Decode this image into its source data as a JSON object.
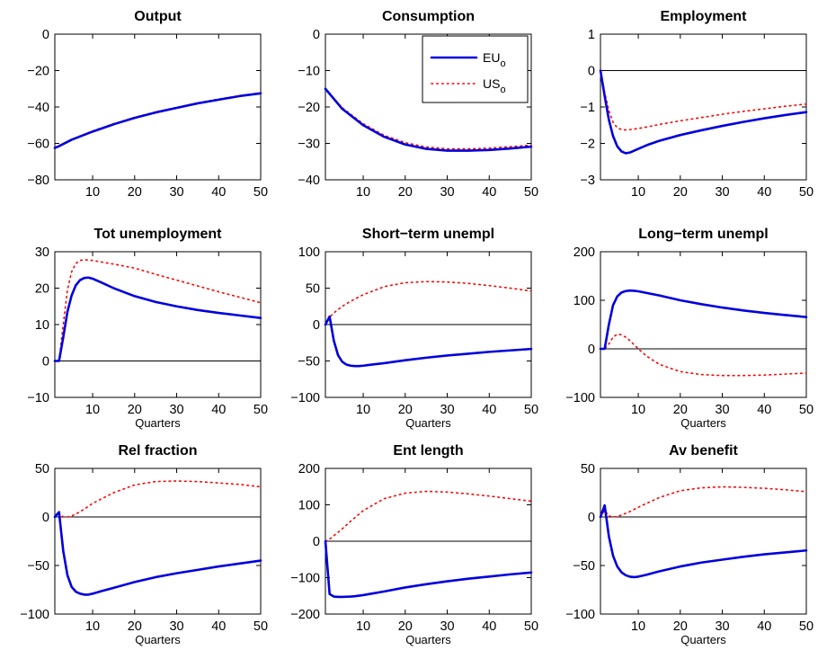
{
  "chart_data": [
    {
      "type": "line",
      "title": "Output",
      "xlabel": "",
      "xlim": [
        1,
        50
      ],
      "ylim": [
        -80,
        0
      ],
      "xticks": [
        10,
        20,
        30,
        40,
        50
      ],
      "yticks": [
        -80,
        -60,
        -40,
        -20,
        0
      ],
      "zero_line": false,
      "series": [
        {
          "name": "EU_o",
          "x": [
            1,
            2,
            5,
            10,
            15,
            20,
            25,
            30,
            35,
            40,
            45,
            50
          ],
          "y": [
            -62.5,
            -61.5,
            -58,
            -53.5,
            -49.5,
            -46,
            -43,
            -40.5,
            -38,
            -36,
            -34,
            -32.5
          ]
        },
        {
          "name": "US_o",
          "x": [
            1,
            2,
            5,
            10,
            15,
            20,
            25,
            30,
            35,
            40,
            45,
            50
          ],
          "y": [
            -62.2,
            -61.2,
            -57.8,
            -53.2,
            -49.2,
            -45.7,
            -42.7,
            -40.2,
            -37.8,
            -35.7,
            -33.8,
            -32.3
          ]
        }
      ]
    },
    {
      "type": "line",
      "title": "Consumption",
      "xlabel": "",
      "xlim": [
        1,
        50
      ],
      "ylim": [
        -40,
        0
      ],
      "xticks": [
        10,
        20,
        30,
        40,
        50
      ],
      "yticks": [
        -40,
        -30,
        -20,
        -10,
        0
      ],
      "zero_line": false,
      "series": [
        {
          "name": "EU_o",
          "x": [
            1,
            5,
            10,
            15,
            20,
            25,
            30,
            35,
            40,
            45,
            50
          ],
          "y": [
            -15,
            -20.5,
            -25,
            -28.2,
            -30.3,
            -31.5,
            -32,
            -32,
            -31.8,
            -31.4,
            -30.9
          ]
        },
        {
          "name": "US_o",
          "x": [
            1,
            5,
            10,
            15,
            20,
            25,
            30,
            35,
            40,
            45,
            50
          ],
          "y": [
            -15,
            -20.2,
            -24.6,
            -27.8,
            -29.8,
            -31,
            -31.5,
            -31.5,
            -31.3,
            -30.9,
            -30.5
          ]
        }
      ],
      "legend": {
        "position": "top-right"
      }
    },
    {
      "type": "line",
      "title": "Employment",
      "xlabel": "",
      "xlim": [
        1,
        50
      ],
      "ylim": [
        -3,
        1
      ],
      "xticks": [
        10,
        20,
        30,
        40,
        50
      ],
      "yticks": [
        -3,
        -2,
        -1,
        0,
        1
      ],
      "zero_line": true,
      "series": [
        {
          "name": "EU_o",
          "x": [
            1,
            2,
            3,
            4,
            5,
            6,
            7,
            8,
            10,
            12,
            15,
            20,
            25,
            30,
            35,
            40,
            45,
            50
          ],
          "y": [
            0,
            -0.7,
            -1.35,
            -1.8,
            -2.08,
            -2.22,
            -2.27,
            -2.25,
            -2.15,
            -2.05,
            -1.93,
            -1.77,
            -1.64,
            -1.52,
            -1.41,
            -1.31,
            -1.22,
            -1.14
          ]
        },
        {
          "name": "US_o",
          "x": [
            1,
            2,
            3,
            4,
            5,
            6,
            7,
            8,
            10,
            12,
            15,
            20,
            25,
            30,
            35,
            40,
            45,
            50
          ],
          "y": [
            0,
            -0.6,
            -1.1,
            -1.42,
            -1.57,
            -1.62,
            -1.63,
            -1.62,
            -1.59,
            -1.55,
            -1.48,
            -1.38,
            -1.29,
            -1.2,
            -1.12,
            -1.05,
            -0.98,
            -0.92
          ]
        }
      ]
    },
    {
      "type": "line",
      "title": "Tot unemployment",
      "xlabel": "Quarters",
      "xlim": [
        1,
        50
      ],
      "ylim": [
        -10,
        30
      ],
      "xticks": [
        10,
        20,
        30,
        40,
        50
      ],
      "yticks": [
        -10,
        0,
        10,
        20,
        30
      ],
      "zero_line": true,
      "series": [
        {
          "name": "EU_o",
          "x": [
            1,
            2,
            3,
            4,
            5,
            6,
            7,
            8,
            9,
            10,
            12,
            15,
            20,
            25,
            30,
            35,
            40,
            45,
            50
          ],
          "y": [
            0,
            0,
            6.5,
            13.5,
            18,
            20.8,
            22.2,
            22.8,
            22.9,
            22.6,
            21.6,
            20,
            17.8,
            16.2,
            15,
            14,
            13.2,
            12.5,
            11.8
          ]
        },
        {
          "name": "US_o",
          "x": [
            1,
            2,
            3,
            4,
            5,
            6,
            7,
            8,
            9,
            10,
            12,
            15,
            20,
            25,
            30,
            35,
            40,
            45,
            50
          ],
          "y": [
            0,
            0,
            10,
            19.5,
            24.5,
            26.8,
            27.6,
            27.8,
            27.7,
            27.6,
            27.2,
            26.6,
            25.5,
            23.8,
            22.2,
            20.6,
            19,
            17.5,
            16
          ]
        }
      ]
    },
    {
      "type": "line",
      "title": "Short−term unempl",
      "xlabel": "Quarters",
      "xlim": [
        1,
        50
      ],
      "ylim": [
        -100,
        100
      ],
      "xticks": [
        10,
        20,
        30,
        40,
        50
      ],
      "yticks": [
        -100,
        -50,
        0,
        50,
        100
      ],
      "zero_line": true,
      "series": [
        {
          "name": "EU_o",
          "x": [
            1,
            2,
            3,
            4,
            5,
            6,
            7,
            8,
            9,
            10,
            12,
            15,
            20,
            25,
            30,
            35,
            40,
            45,
            50
          ],
          "y": [
            0,
            11,
            -22,
            -42,
            -51,
            -55,
            -56.5,
            -57,
            -57,
            -56.5,
            -55,
            -53,
            -49,
            -45.5,
            -42.5,
            -40,
            -37.5,
            -35.5,
            -33.5
          ]
        },
        {
          "name": "US_o",
          "x": [
            1,
            2,
            3,
            5,
            7,
            10,
            15,
            20,
            25,
            30,
            35,
            40,
            45,
            50
          ],
          "y": [
            0,
            10,
            16,
            25,
            32,
            41,
            52,
            57.5,
            59,
            58.5,
            56.5,
            53.5,
            50,
            46
          ]
        }
      ]
    },
    {
      "type": "line",
      "title": "Long−term unempl",
      "xlabel": "Quarters",
      "xlim": [
        1,
        50
      ],
      "ylim": [
        -100,
        200
      ],
      "xticks": [
        10,
        20,
        30,
        40,
        50
      ],
      "yticks": [
        -100,
        0,
        100,
        200
      ],
      "zero_line": true,
      "series": [
        {
          "name": "EU_o",
          "x": [
            1,
            2,
            3,
            4,
            5,
            6,
            7,
            8,
            9,
            10,
            12,
            15,
            20,
            25,
            30,
            35,
            40,
            45,
            50
          ],
          "y": [
            0,
            0,
            50,
            90,
            108,
            116,
            119,
            120,
            119.5,
            118.5,
            115,
            110,
            100,
            92,
            85,
            79,
            74,
            69.5,
            65.5
          ]
        },
        {
          "name": "US_o",
          "x": [
            1,
            2,
            3,
            4,
            5,
            6,
            7,
            8,
            10,
            12,
            15,
            20,
            25,
            30,
            35,
            40,
            45,
            50
          ],
          "y": [
            0,
            0,
            10,
            24,
            30,
            29,
            24,
            17,
            0,
            -15,
            -32,
            -47,
            -53,
            -55,
            -55,
            -54,
            -52,
            -50
          ]
        }
      ]
    },
    {
      "type": "line",
      "title": "Rel fraction",
      "xlabel": "Quarters",
      "xlim": [
        1,
        50
      ],
      "ylim": [
        -100,
        50
      ],
      "xticks": [
        10,
        20,
        30,
        40,
        50
      ],
      "yticks": [
        -100,
        -50,
        0,
        50
      ],
      "zero_line": true,
      "series": [
        {
          "name": "EU_o",
          "x": [
            1,
            2,
            3,
            4,
            5,
            6,
            7,
            8,
            9,
            10,
            12,
            15,
            20,
            25,
            30,
            35,
            40,
            45,
            50
          ],
          "y": [
            0,
            5,
            -35,
            -60,
            -72,
            -77,
            -79,
            -80,
            -80,
            -79,
            -76.5,
            -73,
            -67,
            -62,
            -58,
            -54.5,
            -51,
            -48,
            -45
          ]
        },
        {
          "name": "US_o",
          "x": [
            1,
            2,
            3,
            4,
            5,
            6,
            8,
            10,
            15,
            20,
            25,
            30,
            35,
            40,
            45,
            50
          ],
          "y": [
            0,
            4,
            0,
            0,
            1,
            3,
            8,
            14,
            25,
            33,
            36.5,
            37,
            36.5,
            35,
            33.5,
            31
          ]
        }
      ]
    },
    {
      "type": "line",
      "title": "Ent length",
      "xlabel": "Quarters",
      "xlim": [
        1,
        50
      ],
      "ylim": [
        -200,
        200
      ],
      "xticks": [
        10,
        20,
        30,
        40,
        50
      ],
      "yticks": [
        -200,
        -100,
        0,
        100,
        200
      ],
      "zero_line": true,
      "series": [
        {
          "name": "EU_o",
          "x": [
            1,
            2,
            3,
            4,
            5,
            6,
            7,
            8,
            10,
            12,
            15,
            20,
            25,
            30,
            35,
            40,
            45,
            50
          ],
          "y": [
            0,
            -145,
            -152,
            -153,
            -153,
            -152.5,
            -152,
            -151,
            -148,
            -144,
            -138,
            -127,
            -118,
            -110,
            -103,
            -97,
            -91,
            -86
          ]
        },
        {
          "name": "US_o",
          "x": [
            1,
            2,
            3,
            5,
            7,
            10,
            15,
            20,
            25,
            30,
            35,
            40,
            45,
            50
          ],
          "y": [
            0,
            6,
            15,
            34,
            55,
            84,
            117,
            132,
            137,
            135,
            130,
            124,
            117,
            110
          ]
        }
      ]
    },
    {
      "type": "line",
      "title": "Av benefit",
      "xlabel": "Quarters",
      "xlim": [
        1,
        50
      ],
      "ylim": [
        -100,
        50
      ],
      "xticks": [
        10,
        20,
        30,
        40,
        50
      ],
      "yticks": [
        -100,
        -50,
        0,
        50
      ],
      "zero_line": true,
      "series": [
        {
          "name": "EU_o",
          "x": [
            1,
            2,
            3,
            4,
            5,
            6,
            7,
            8,
            9,
            10,
            12,
            15,
            20,
            25,
            30,
            35,
            40,
            45,
            50
          ],
          "y": [
            0,
            12,
            -20,
            -40,
            -51,
            -57,
            -60,
            -61.5,
            -62,
            -61.5,
            -59.5,
            -56,
            -51,
            -47,
            -44,
            -41,
            -38.5,
            -36.5,
            -34.5
          ]
        },
        {
          "name": "US_o",
          "x": [
            1,
            2,
            3,
            4,
            5,
            6,
            8,
            10,
            15,
            20,
            25,
            30,
            35,
            40,
            45,
            50
          ],
          "y": [
            0,
            7,
            1,
            0,
            0.5,
            2,
            5.5,
            10,
            20,
            27,
            30,
            31,
            30.5,
            29.5,
            28,
            26
          ]
        }
      ]
    }
  ],
  "legend": {
    "entries": [
      {
        "base": "EU",
        "sub": "o",
        "color": "#0000dd",
        "style": "solid"
      },
      {
        "base": "US",
        "sub": "o",
        "color": "#ff0000",
        "style": "dotted"
      }
    ]
  }
}
